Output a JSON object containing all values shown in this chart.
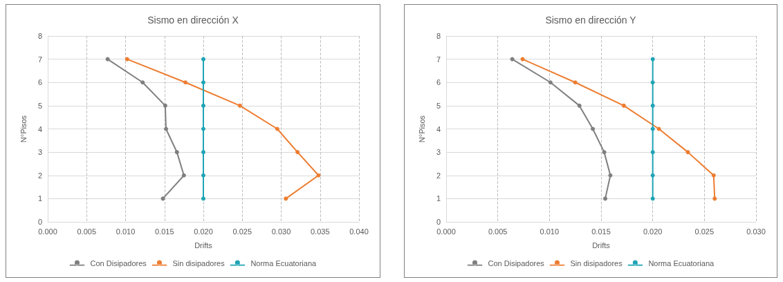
{
  "chart_data": [
    {
      "type": "line",
      "title": "Sismo en dirección X",
      "xlabel": "Drifts",
      "ylabel": "N°Pisos",
      "series": [
        {
          "name": "Con Disipadores",
          "color": "#7f7f7f",
          "x": [
            0.0148,
            0.0175,
            0.0166,
            0.0152,
            0.0151,
            0.0122,
            0.0077
          ],
          "values": [
            1,
            2,
            3,
            4,
            5,
            6,
            7
          ]
        },
        {
          "name": "Sin disipadores",
          "color": "#ed7d31",
          "x": [
            0.0306,
            0.0348,
            0.0321,
            0.0295,
            0.0247,
            0.0177,
            0.0102
          ],
          "values": [
            1,
            2,
            3,
            4,
            5,
            6,
            7
          ]
        },
        {
          "name": "Norma Ecuatoriana",
          "color": "#1fa4b5",
          "x": [
            0.02,
            0.02,
            0.02,
            0.02,
            0.02,
            0.02,
            0.02
          ],
          "values": [
            1,
            2,
            3,
            4,
            5,
            6,
            7
          ]
        }
      ],
      "xlim": [
        0,
        0.04
      ],
      "xticks": [
        {
          "value": 0,
          "label": "0.000"
        },
        {
          "value": 0.005,
          "label": "0.005"
        },
        {
          "value": 0.01,
          "label": "0.010"
        },
        {
          "value": 0.015,
          "label": "0.015"
        },
        {
          "value": 0.02,
          "label": "0.020"
        },
        {
          "value": 0.025,
          "label": "0.025"
        },
        {
          "value": 0.03,
          "label": "0.030"
        },
        {
          "value": 0.035,
          "label": "0.035"
        },
        {
          "value": 0.04,
          "label": "0.040"
        }
      ],
      "ylim": [
        0,
        8
      ],
      "yticks": [
        0,
        1,
        2,
        3,
        4,
        5,
        6,
        7,
        8
      ],
      "grid": true,
      "legend": "bottom",
      "marker": "circle",
      "line_style": "solid"
    },
    {
      "type": "line",
      "title": "Sismo en dirección Y",
      "xlabel": "Drifts",
      "ylabel": "N°Pisos",
      "series": [
        {
          "name": "Con Disipadores",
          "color": "#7f7f7f",
          "x": [
            0.0154,
            0.0159,
            0.0153,
            0.0142,
            0.0129,
            0.0101,
            0.0064
          ],
          "values": [
            1,
            2,
            3,
            4,
            5,
            6,
            7
          ]
        },
        {
          "name": "Sin disipadores",
          "color": "#ed7d31",
          "x": [
            0.026,
            0.0259,
            0.0234,
            0.0206,
            0.0172,
            0.0125,
            0.0074
          ],
          "values": [
            1,
            2,
            3,
            4,
            5,
            6,
            7
          ]
        },
        {
          "name": "Norma Ecuatoriana",
          "color": "#1fa4b5",
          "x": [
            0.02,
            0.02,
            0.02,
            0.02,
            0.02,
            0.02,
            0.02
          ],
          "values": [
            1,
            2,
            3,
            4,
            5,
            6,
            7
          ]
        }
      ],
      "xlim": [
        0,
        0.03
      ],
      "xticks": [
        {
          "value": 0,
          "label": "0.000"
        },
        {
          "value": 0.005,
          "label": "0.005"
        },
        {
          "value": 0.01,
          "label": "0.010"
        },
        {
          "value": 0.015,
          "label": "0.015"
        },
        {
          "value": 0.02,
          "label": "0.020"
        },
        {
          "value": 0.025,
          "label": "0.025"
        },
        {
          "value": 0.03,
          "label": "0.030"
        }
      ],
      "ylim": [
        0,
        8
      ],
      "yticks": [
        0,
        1,
        2,
        3,
        4,
        5,
        6,
        7,
        8
      ],
      "grid": true,
      "legend": "bottom",
      "marker": "circle",
      "line_style": "solid"
    }
  ]
}
